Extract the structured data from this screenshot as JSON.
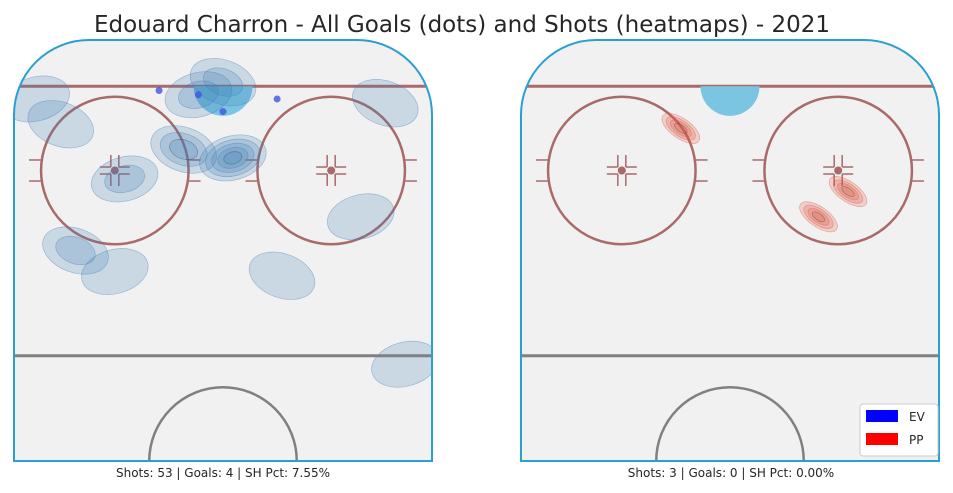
{
  "title": "Edouard Charron - All Goals (dots) and Shots (heatmaps) - 2021",
  "colors": {
    "ice": "#f1f1f1",
    "boards": "#2b9fd0",
    "red_line": "#a96a6a",
    "blue_line": "#808080",
    "crease": "#7bc4e2",
    "ev_heat": "#3f7fb7",
    "pp_heat": "#e2553f",
    "goal_dot": "#4055e0"
  },
  "legend": {
    "placement": "bottom-right",
    "items": [
      {
        "label": "EV",
        "color": "#0000ff"
      },
      {
        "label": "PP",
        "color": "#ff0000"
      }
    ]
  },
  "chart_data": [
    {
      "type": "heatmap",
      "panel": "EV",
      "caption": "Shots: 53 | Goals: 4 | SH Pct: 7.55%",
      "shots": 53,
      "goals": 4,
      "sh_pct": "7.55%",
      "goal_dots": [
        {
          "x": -13,
          "y": 88
        },
        {
          "x": -5,
          "y": 87
        },
        {
          "x": 0,
          "y": 83
        },
        {
          "x": 11,
          "y": 86
        }
      ],
      "shot_density": [
        {
          "x": 2,
          "y": 72,
          "level": 5
        },
        {
          "x": -8,
          "y": 74,
          "level": 3
        },
        {
          "x": -20,
          "y": 67,
          "level": 2
        },
        {
          "x": 0,
          "y": 90,
          "level": 2
        },
        {
          "x": -5,
          "y": 87,
          "level": 2
        },
        {
          "x": -30,
          "y": 50,
          "level": 2
        },
        {
          "x": -22,
          "y": 45,
          "level": 1
        },
        {
          "x": 12,
          "y": 44,
          "level": 1
        },
        {
          "x": 28,
          "y": 58,
          "level": 1
        },
        {
          "x": 33,
          "y": 85,
          "level": 1
        },
        {
          "x": 37,
          "y": 23,
          "level": 1
        },
        {
          "x": -33,
          "y": 80,
          "level": 1
        },
        {
          "x": -38,
          "y": 86,
          "level": 1
        }
      ]
    },
    {
      "type": "heatmap",
      "panel": "PP",
      "caption": "Shots: 3 | Goals: 0 | SH Pct: 0.00%",
      "shots": 3,
      "goals": 0,
      "sh_pct": "0.00%",
      "goal_dots": [],
      "shot_density": [
        {
          "x": -10,
          "y": 79,
          "level": 4
        },
        {
          "x": 24,
          "y": 64,
          "level": 4
        },
        {
          "x": 18,
          "y": 58,
          "level": 4
        }
      ]
    }
  ]
}
